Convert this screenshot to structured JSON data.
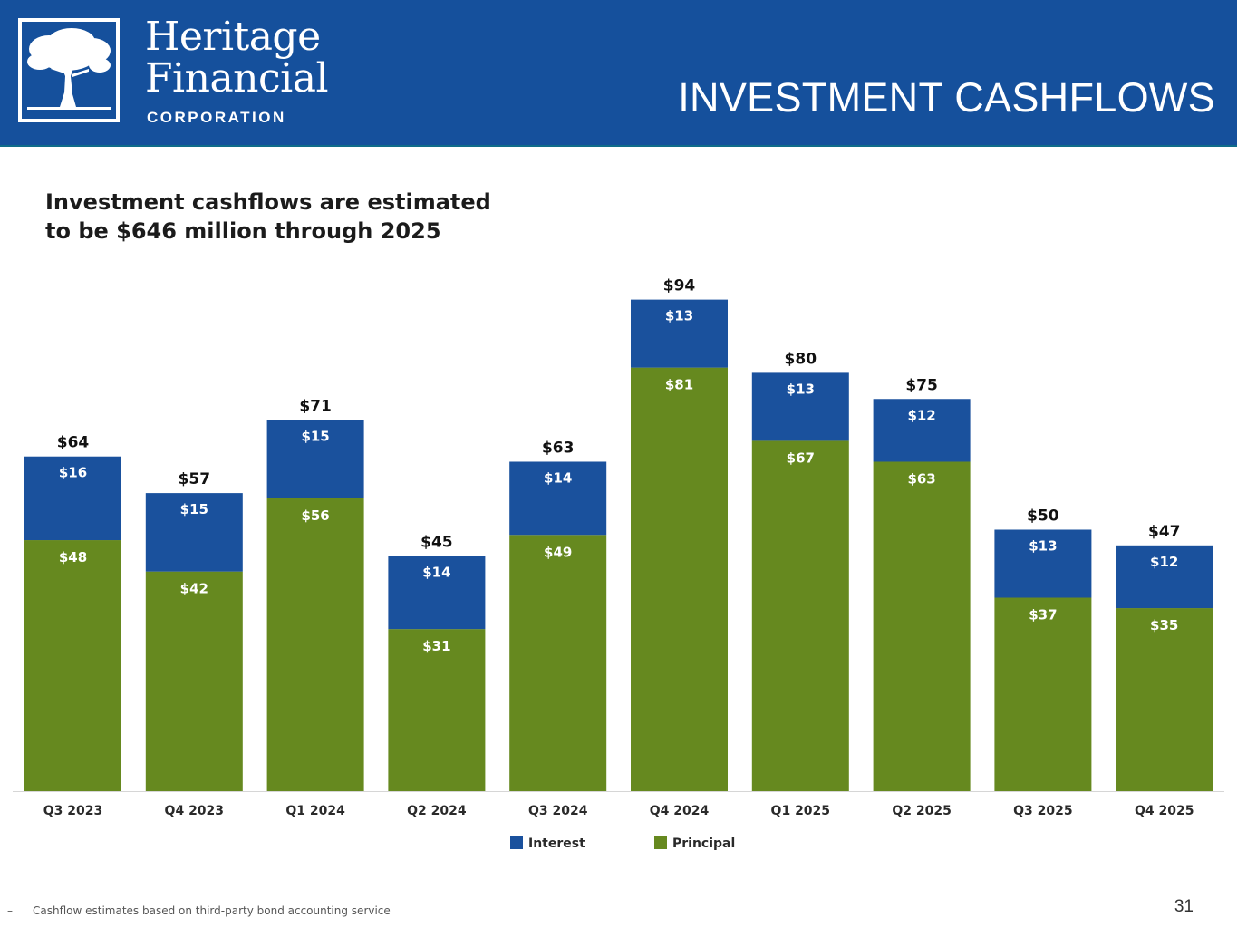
{
  "header": {
    "logo_line1": "Heritage",
    "logo_line2": "Financial",
    "logo_line3": "CORPORATION",
    "title": "INVESTMENT CASHFLOWS"
  },
  "subtitle": {
    "line1": "Investment cashflows are estimated",
    "line2": "to be $646 million through 2025"
  },
  "colors": {
    "header_bg": "#15509c",
    "interest": "#1a519d",
    "principal": "#66891f"
  },
  "chart_data": {
    "type": "bar",
    "stacked": true,
    "title": "",
    "xlabel": "",
    "ylabel": "",
    "ylim": [
      0,
      100
    ],
    "grid": false,
    "legend_position": "bottom-center",
    "categories": [
      "Q3 2023",
      "Q4 2023",
      "Q1 2024",
      "Q2 2024",
      "Q3 2024",
      "Q4 2024",
      "Q1 2025",
      "Q2 2025",
      "Q3 2025",
      "Q4 2025"
    ],
    "series": [
      {
        "name": "Principal",
        "color": "#66891f",
        "values": [
          48,
          42,
          56,
          31,
          49,
          81,
          67,
          63,
          37,
          35
        ],
        "labels": [
          "$48",
          "$42",
          "$56",
          "$31",
          "$49",
          "$81",
          "$67",
          "$63",
          "$37",
          "$35"
        ]
      },
      {
        "name": "Interest",
        "color": "#1a519d",
        "values": [
          16,
          15,
          15,
          14,
          14,
          13,
          13,
          12,
          13,
          12
        ],
        "labels": [
          "$16",
          "$15",
          "$15",
          "$14",
          "$14",
          "$13",
          "$13",
          "$12",
          "$13",
          "$12"
        ]
      }
    ],
    "totals": [
      64,
      57,
      71,
      45,
      63,
      94,
      80,
      75,
      50,
      47
    ],
    "total_labels": [
      "$64",
      "$57",
      "$71",
      "$45",
      "$63",
      "$94",
      "$80",
      "$75",
      "$50",
      "$47"
    ]
  },
  "legend": {
    "interest": "Interest",
    "principal": "Principal"
  },
  "footnote": {
    "bullet": "–",
    "text": "Cashflow estimates based on third-party bond accounting service"
  },
  "page_number": "31"
}
